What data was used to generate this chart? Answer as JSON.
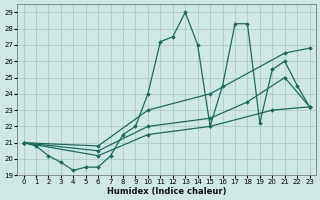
{
  "xlabel": "Humidex (Indice chaleur)",
  "xlim": [
    -0.5,
    23.5
  ],
  "ylim": [
    19,
    29.5
  ],
  "xticks": [
    0,
    1,
    2,
    3,
    4,
    5,
    6,
    7,
    8,
    9,
    10,
    11,
    12,
    13,
    14,
    15,
    16,
    17,
    18,
    19,
    20,
    21,
    22,
    23
  ],
  "yticks": [
    19,
    20,
    21,
    22,
    23,
    24,
    25,
    26,
    27,
    28,
    29
  ],
  "background_color": "#cfe8e5",
  "grid_color": "#aacdc9",
  "line_color": "#1a6b5a",
  "line1_x": [
    0,
    1,
    2,
    3,
    4,
    5,
    6,
    7,
    8,
    9,
    10,
    11,
    12,
    13,
    14,
    15,
    16,
    17,
    18,
    19,
    20,
    21,
    22,
    23
  ],
  "line1_y": [
    21.0,
    20.8,
    20.2,
    19.8,
    19.3,
    19.5,
    19.5,
    20.2,
    21.5,
    22.0,
    24.0,
    27.2,
    27.5,
    29.0,
    27.0,
    22.0,
    24.5,
    28.3,
    28.3,
    22.2,
    25.5,
    26.0,
    24.5,
    23.2
  ],
  "line2_x": [
    0,
    6,
    10,
    15,
    21,
    23
  ],
  "line2_y": [
    21.0,
    20.8,
    23.0,
    24.0,
    26.5,
    26.8
  ],
  "line3_x": [
    0,
    6,
    10,
    15,
    18,
    21,
    23
  ],
  "line3_y": [
    21.0,
    20.5,
    22.0,
    22.5,
    23.5,
    25.0,
    23.2
  ],
  "line4_x": [
    0,
    6,
    10,
    15,
    20,
    23
  ],
  "line4_y": [
    21.0,
    20.2,
    21.5,
    22.0,
    23.0,
    23.2
  ]
}
